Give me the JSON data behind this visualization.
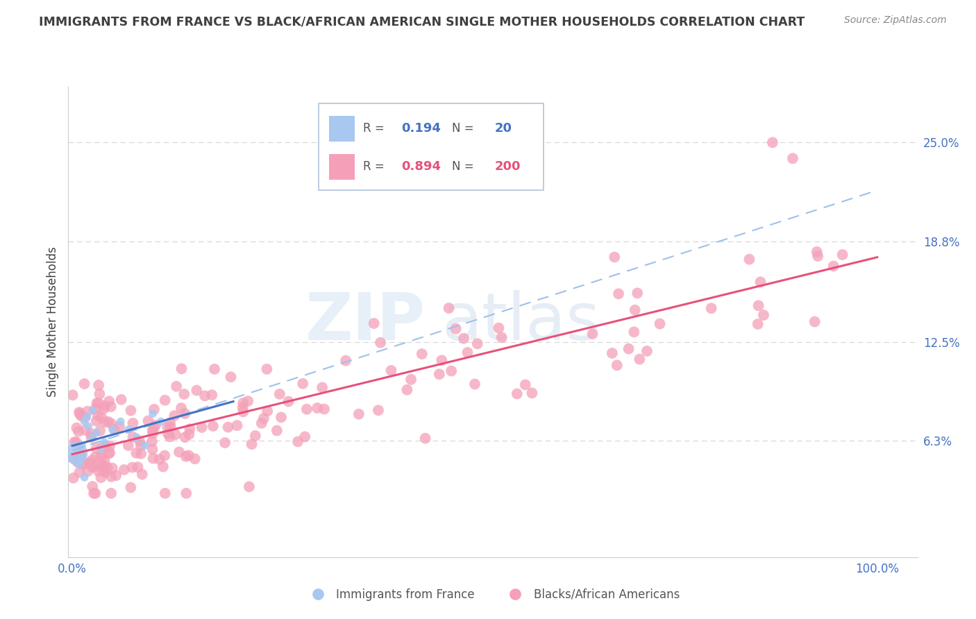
{
  "title": "IMMIGRANTS FROM FRANCE VS BLACK/AFRICAN AMERICAN SINGLE MOTHER HOUSEHOLDS CORRELATION CHART",
  "source": "Source: ZipAtlas.com",
  "ylabel": "Single Mother Households",
  "ytick_labels": [
    "6.3%",
    "12.5%",
    "18.8%",
    "25.0%"
  ],
  "ytick_values": [
    0.063,
    0.125,
    0.188,
    0.25
  ],
  "ylim": [
    -0.01,
    0.285
  ],
  "xlim": [
    -0.005,
    1.05
  ],
  "legend_blue_R": "0.194",
  "legend_blue_N": "20",
  "legend_pink_R": "0.894",
  "legend_pink_N": "200",
  "legend_label_blue": "Immigrants from France",
  "legend_label_pink": "Blacks/African Americans",
  "watermark_zip": "ZIP",
  "watermark_atlas": "atlas",
  "blue_color": "#a8c8f0",
  "pink_color": "#f4a0b8",
  "blue_line_color": "#4472c4",
  "pink_line_color": "#e8507a",
  "dashed_line_color": "#a0c0e8",
  "axis_label_color": "#4472c4",
  "title_color": "#404040",
  "source_color": "#888888",
  "background_color": "#ffffff",
  "grid_color": "#d8d8d8"
}
